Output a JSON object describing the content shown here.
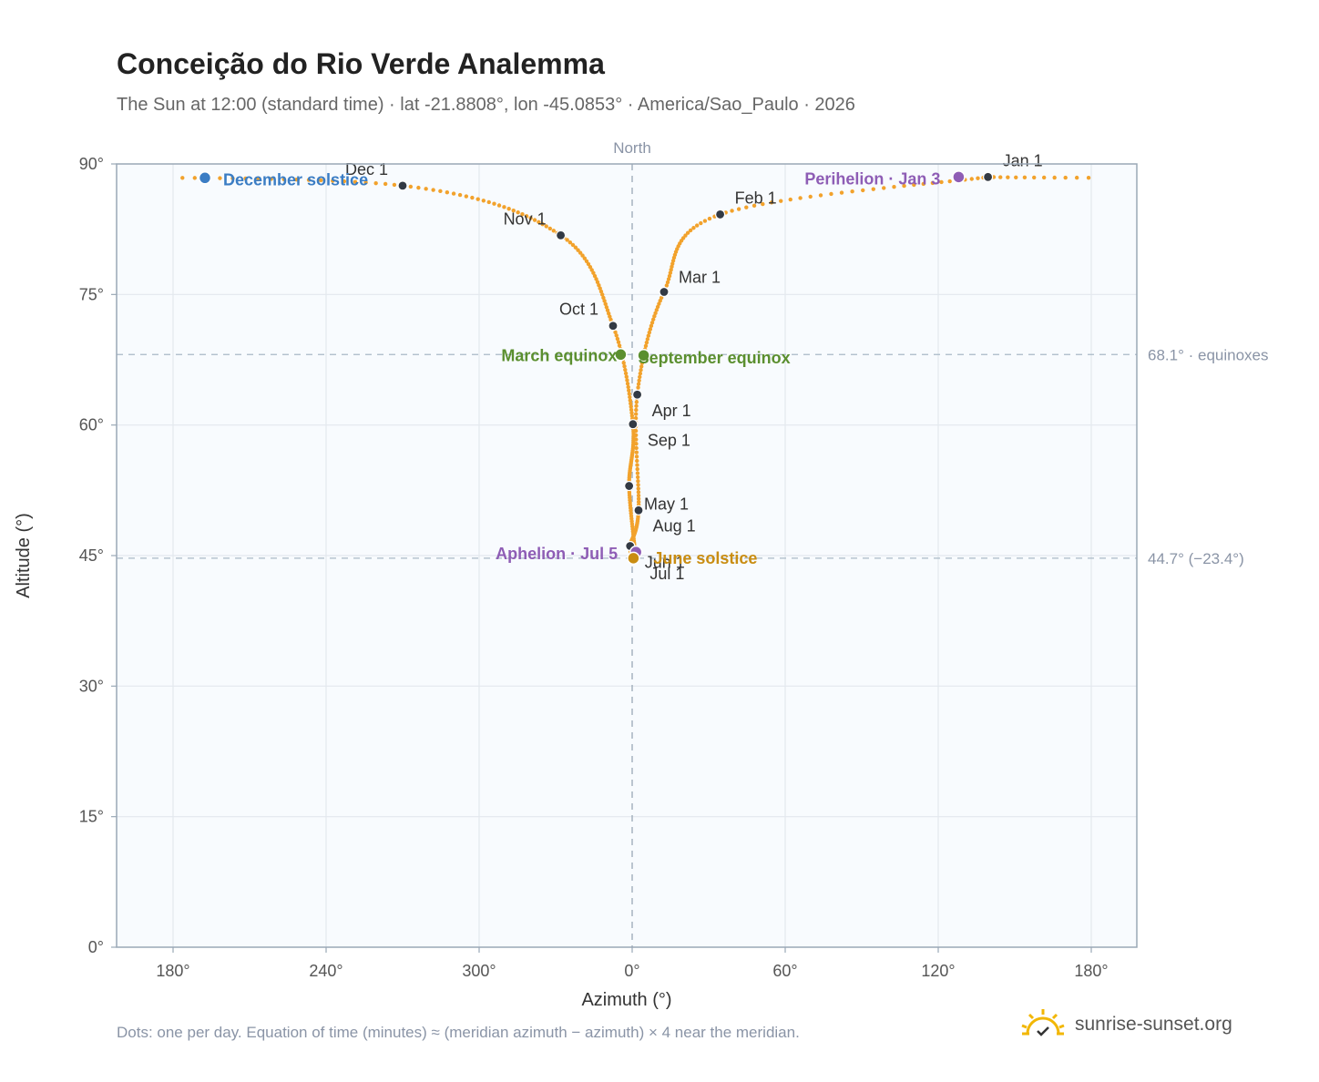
{
  "header": {
    "title": "Conceição do Rio Verde Analemma",
    "subtitle": "The Sun at 12:00 (standard time) · lat -21.8808°, lon -45.0853° · America/Sao_Paulo · 2026"
  },
  "footer": {
    "note": "Dots: one per day. Equation of time (minutes) ≈ (meridian azimuth − azimuth) × 4 near the meridian.",
    "brand": "sunrise-sunset.org"
  },
  "chart_data": {
    "type": "scatter",
    "xlabel": "Azimuth (°)",
    "ylabel": "Altitude (°)",
    "x_ticks": [
      "180°",
      "240°",
      "300°",
      "0°",
      "60°",
      "120°",
      "180°"
    ],
    "y_ticks": [
      "0°",
      "15°",
      "30°",
      "45°",
      "60°",
      "75°",
      "90°"
    ],
    "ylim": [
      0,
      90
    ],
    "north_label": "North",
    "grid": true,
    "reference_lines": [
      {
        "altitude": 68.1,
        "label": "68.1° · equinoxes"
      },
      {
        "altitude": 44.7,
        "label": "44.7° (−23.4°)"
      }
    ],
    "month_markers": [
      {
        "label": "Jan 1",
        "az": 139.5,
        "alt": 88.5
      },
      {
        "label": "Feb 1",
        "az": 34.5,
        "alt": 84.2
      },
      {
        "label": "Mar 1",
        "az": 12.5,
        "alt": 75.3
      },
      {
        "label": "Apr 1",
        "az": 2.0,
        "alt": 63.5
      },
      {
        "label": "May 1",
        "az": 2.5,
        "alt": 50.2
      },
      {
        "label": "Jun 1",
        "az": -0.8,
        "alt": 46.1
      },
      {
        "label": "Jul 1",
        "az": 1.2,
        "alt": 45.0
      },
      {
        "label": "Aug 1",
        "az": -1.2,
        "alt": 53.0
      },
      {
        "label": "Sep 1",
        "az": 0.3,
        "alt": 60.1
      },
      {
        "label": "Oct 1",
        "az": -7.5,
        "alt": 71.4
      },
      {
        "label": "Nov 1",
        "az": -28.0,
        "alt": 81.8
      },
      {
        "label": "Dec 1",
        "az": -90.0,
        "alt": 87.5
      }
    ],
    "events": [
      {
        "label": "December solstice",
        "az": -167.5,
        "alt": 88.4,
        "color": "#3b7dc4"
      },
      {
        "label": "Perihelion · Jan 3",
        "az": 128.0,
        "alt": 88.5,
        "color": "#8e5db5"
      },
      {
        "label": "March equinox",
        "az": -4.5,
        "alt": 68.1,
        "color": "#5b8f2f"
      },
      {
        "label": "September equinox",
        "az": 4.5,
        "alt": 68.0,
        "color": "#5b8f2f"
      },
      {
        "label": "Aphelion · Jul 5",
        "az": 1.5,
        "alt": 45.4,
        "color": "#8e5db5"
      },
      {
        "label": "June solstice",
        "az": 0.5,
        "alt": 44.7,
        "color": "#c98d12"
      }
    ],
    "curve_color": "#f2a22c"
  }
}
